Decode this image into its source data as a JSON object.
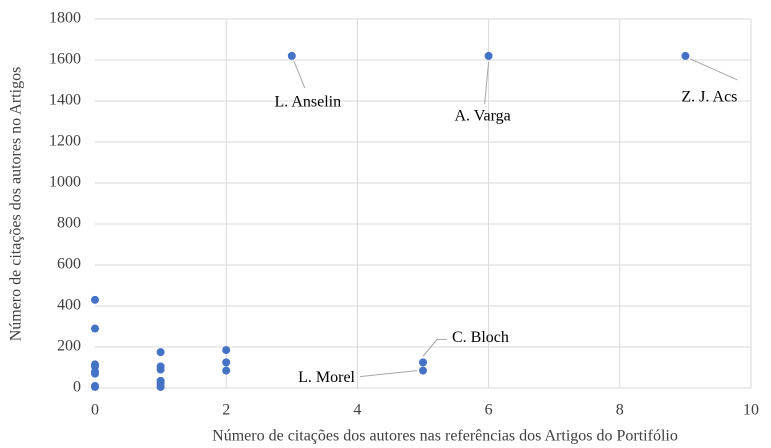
{
  "chart_data": {
    "type": "scatter",
    "x_label": "Número de citações dos autores nas referências dos Artigos do Portifólio",
    "y_label": "Número de citações dos autores no Artigos",
    "xlim": [
      0,
      10
    ],
    "xticks": [
      0,
      2,
      4,
      6,
      8,
      10
    ],
    "ylim": [
      0,
      1800
    ],
    "yticks": [
      0,
      200,
      400,
      600,
      800,
      1000,
      1200,
      1400,
      1600,
      1800
    ],
    "grid": true,
    "color": "#4472c4",
    "x": [
      0,
      0,
      0,
      0,
      0,
      0,
      0,
      0,
      1,
      1,
      1,
      1,
      1,
      1,
      2,
      2,
      2,
      3,
      5,
      5,
      6,
      9
    ],
    "values": [
      430,
      290,
      115,
      105,
      80,
      70,
      10,
      5,
      175,
      105,
      90,
      35,
      20,
      5,
      185,
      125,
      85,
      1620,
      125,
      85,
      1620,
      1620
    ],
    "point_labels": [
      null,
      null,
      null,
      null,
      null,
      null,
      null,
      null,
      null,
      null,
      null,
      null,
      null,
      null,
      null,
      null,
      null,
      "L. Anselin",
      "C. Bloch",
      "L. Morel",
      "A. Varga",
      "Z. J. Acs"
    ]
  }
}
